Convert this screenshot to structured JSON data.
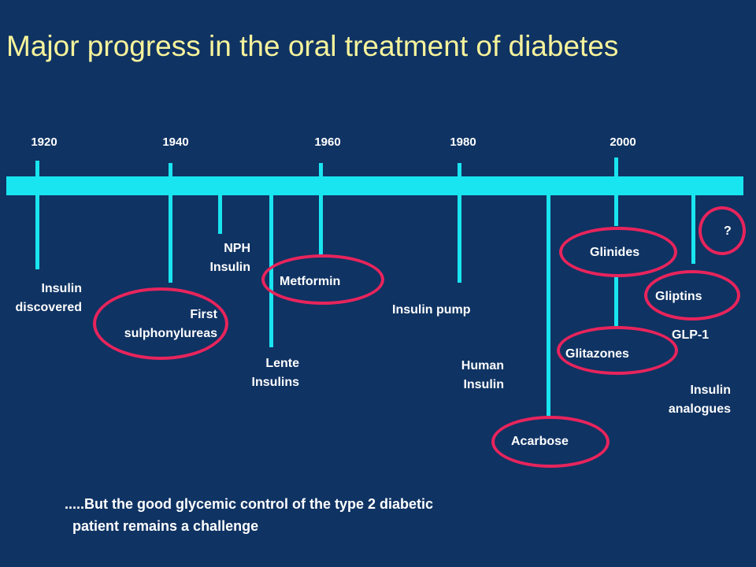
{
  "title": "Major progress in the oral treatment of diabetes",
  "years": [
    "1920",
    "1940",
    "1960",
    "1980",
    "2000"
  ],
  "events": {
    "insulin_discovered": [
      "Insulin",
      "discovered"
    ],
    "first_sulphonylureas": [
      "First",
      "sulphonylureas"
    ],
    "nph_insulin": [
      "NPH",
      "Insulin"
    ],
    "lente_insulins": [
      "Lente",
      "Insulins"
    ],
    "metformin": "Metformin",
    "insulin_pump": "Insulin pump",
    "human_insulin": [
      "Human",
      "Insulin"
    ],
    "acarbose": "Acarbose",
    "glinides": "Glinides",
    "glitazones": "Glitazones",
    "gliptins": "Gliptins",
    "glp1": "GLP-1",
    "insulin_analogues": [
      "Insulin",
      "analogues"
    ],
    "unknown": "?"
  },
  "footer": [
    ".....But the good glycemic control of the type 2 diabetic",
    "patient remains a challenge"
  ],
  "colors": {
    "background": "#0f3363",
    "title": "#f7f39b",
    "timeline": "#19e5f0",
    "highlight": "#e8245c"
  }
}
